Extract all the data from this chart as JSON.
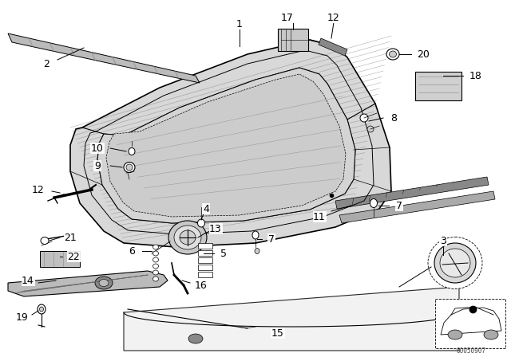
{
  "bg_color": "#ffffff",
  "fig_width": 6.4,
  "fig_height": 4.48,
  "dpi": 100,
  "watermark": "00050907",
  "line_color": "#000000"
}
